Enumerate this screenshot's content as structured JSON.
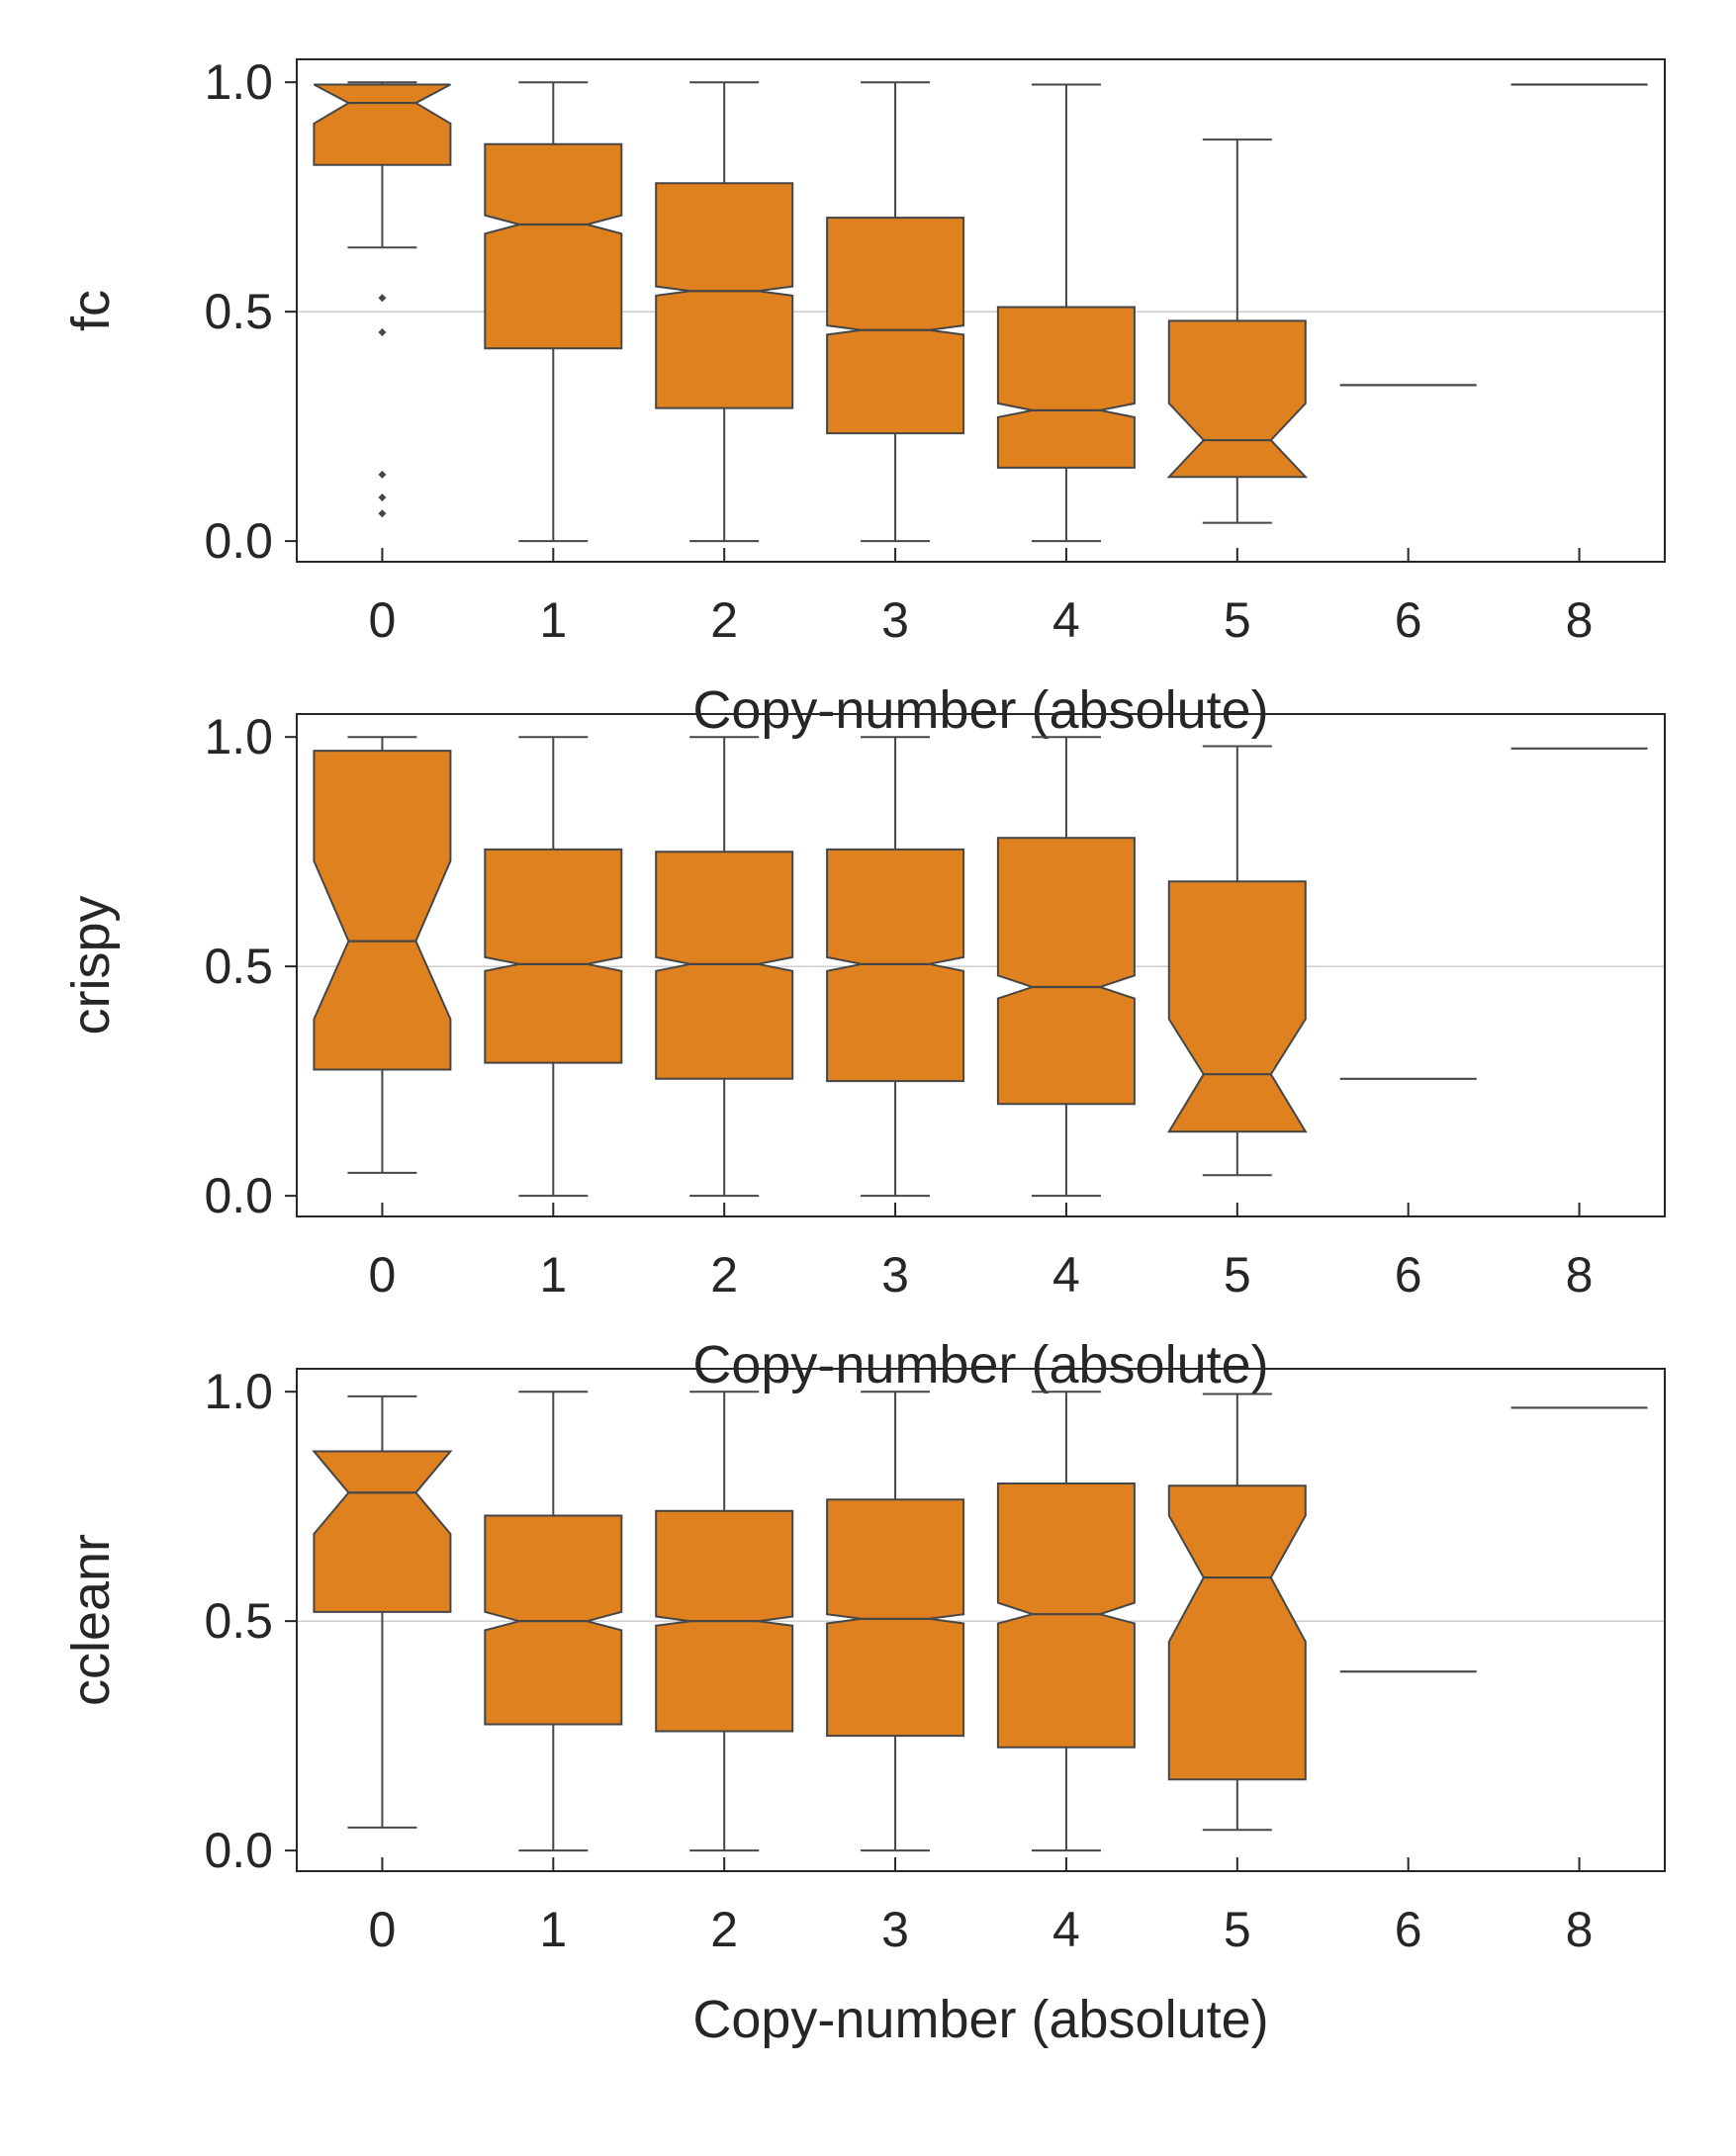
{
  "chart_data": [
    {
      "type": "boxplot",
      "notched": true,
      "ylabel": "fc",
      "xlabel": "Copy-number (absolute)",
      "categories": [
        "0",
        "1",
        "2",
        "3",
        "4",
        "5",
        "6",
        "8"
      ],
      "ylim": [
        -0.045,
        1.05
      ],
      "yticks": [
        "0.0",
        "0.5",
        "1.0"
      ],
      "reference_line": 0.5,
      "box_color": "#e08120",
      "line_color": "#464646",
      "boxes": [
        {
          "category": "0",
          "whisker_low": 0.64,
          "q1": 0.82,
          "median": 0.955,
          "q3": 0.995,
          "whisker_high": 1.0,
          "notch_low": 0.91,
          "notch_high": 0.995,
          "outliers": [
            0.53,
            0.455,
            0.145,
            0.095,
            0.06
          ]
        },
        {
          "category": "1",
          "whisker_low": 0.0,
          "q1": 0.42,
          "median": 0.69,
          "q3": 0.865,
          "whisker_high": 1.0,
          "notch_low": 0.67,
          "notch_high": 0.71,
          "outliers": []
        },
        {
          "category": "2",
          "whisker_low": 0.0,
          "q1": 0.29,
          "median": 0.545,
          "q3": 0.78,
          "whisker_high": 1.0,
          "notch_low": 0.535,
          "notch_high": 0.555,
          "outliers": []
        },
        {
          "category": "3",
          "whisker_low": 0.0,
          "q1": 0.235,
          "median": 0.46,
          "q3": 0.705,
          "whisker_high": 1.0,
          "notch_low": 0.45,
          "notch_high": 0.47,
          "outliers": []
        },
        {
          "category": "4",
          "whisker_low": 0.0,
          "q1": 0.16,
          "median": 0.285,
          "q3": 0.51,
          "whisker_high": 0.995,
          "notch_low": 0.27,
          "notch_high": 0.3,
          "outliers": []
        },
        {
          "category": "5",
          "whisker_low": 0.04,
          "q1": 0.14,
          "median": 0.22,
          "q3": 0.48,
          "whisker_high": 0.875,
          "notch_low": 0.14,
          "notch_high": 0.3,
          "outliers": []
        },
        {
          "category": "6",
          "single": 0.34
        },
        {
          "category": "8",
          "single": 0.995
        }
      ]
    },
    {
      "type": "boxplot",
      "notched": true,
      "ylabel": "crispy",
      "xlabel": "Copy-number (absolute)",
      "categories": [
        "0",
        "1",
        "2",
        "3",
        "4",
        "5",
        "6",
        "8"
      ],
      "ylim": [
        -0.045,
        1.05
      ],
      "yticks": [
        "0.0",
        "0.5",
        "1.0"
      ],
      "reference_line": 0.5,
      "box_color": "#e08120",
      "line_color": "#464646",
      "boxes": [
        {
          "category": "0",
          "whisker_low": 0.05,
          "q1": 0.275,
          "median": 0.555,
          "q3": 0.97,
          "whisker_high": 1.0,
          "notch_low": 0.385,
          "notch_high": 0.73,
          "outliers": []
        },
        {
          "category": "1",
          "whisker_low": 0.0,
          "q1": 0.29,
          "median": 0.505,
          "q3": 0.755,
          "whisker_high": 1.0,
          "notch_low": 0.49,
          "notch_high": 0.52,
          "outliers": []
        },
        {
          "category": "2",
          "whisker_low": 0.0,
          "q1": 0.255,
          "median": 0.505,
          "q3": 0.75,
          "whisker_high": 1.0,
          "notch_low": 0.49,
          "notch_high": 0.52,
          "outliers": []
        },
        {
          "category": "3",
          "whisker_low": 0.0,
          "q1": 0.25,
          "median": 0.505,
          "q3": 0.755,
          "whisker_high": 1.0,
          "notch_low": 0.49,
          "notch_high": 0.52,
          "outliers": []
        },
        {
          "category": "4",
          "whisker_low": 0.0,
          "q1": 0.2,
          "median": 0.455,
          "q3": 0.78,
          "whisker_high": 1.0,
          "notch_low": 0.43,
          "notch_high": 0.48,
          "outliers": []
        },
        {
          "category": "5",
          "whisker_low": 0.045,
          "q1": 0.14,
          "median": 0.265,
          "q3": 0.685,
          "whisker_high": 0.98,
          "notch_low": 0.14,
          "notch_high": 0.385,
          "outliers": []
        },
        {
          "category": "6",
          "single": 0.255
        },
        {
          "category": "8",
          "single": 0.975
        }
      ]
    },
    {
      "type": "boxplot",
      "notched": true,
      "ylabel": "ccleanr",
      "xlabel": "Copy-number (absolute)",
      "categories": [
        "0",
        "1",
        "2",
        "3",
        "4",
        "5",
        "6",
        "8"
      ],
      "ylim": [
        -0.045,
        1.05
      ],
      "yticks": [
        "0.0",
        "0.5",
        "1.0"
      ],
      "reference_line": 0.5,
      "box_color": "#e08120",
      "line_color": "#464646",
      "boxes": [
        {
          "category": "0",
          "whisker_low": 0.05,
          "q1": 0.52,
          "median": 0.78,
          "q3": 0.87,
          "whisker_high": 0.99,
          "notch_low": 0.69,
          "notch_high": 0.87,
          "outliers": []
        },
        {
          "category": "1",
          "whisker_low": 0.0,
          "q1": 0.275,
          "median": 0.5,
          "q3": 0.73,
          "whisker_high": 1.0,
          "notch_low": 0.48,
          "notch_high": 0.52,
          "outliers": []
        },
        {
          "category": "2",
          "whisker_low": 0.0,
          "q1": 0.26,
          "median": 0.5,
          "q3": 0.74,
          "whisker_high": 1.0,
          "notch_low": 0.49,
          "notch_high": 0.51,
          "outliers": []
        },
        {
          "category": "3",
          "whisker_low": 0.0,
          "q1": 0.25,
          "median": 0.505,
          "q3": 0.765,
          "whisker_high": 1.0,
          "notch_low": 0.495,
          "notch_high": 0.515,
          "outliers": []
        },
        {
          "category": "4",
          "whisker_low": 0.0,
          "q1": 0.225,
          "median": 0.515,
          "q3": 0.8,
          "whisker_high": 1.0,
          "notch_low": 0.495,
          "notch_high": 0.54,
          "outliers": []
        },
        {
          "category": "5",
          "whisker_low": 0.045,
          "q1": 0.155,
          "median": 0.595,
          "q3": 0.795,
          "whisker_high": 0.995,
          "notch_low": 0.455,
          "notch_high": 0.73,
          "outliers": []
        },
        {
          "category": "6",
          "single": 0.39
        },
        {
          "category": "8",
          "single": 0.965
        }
      ]
    }
  ]
}
